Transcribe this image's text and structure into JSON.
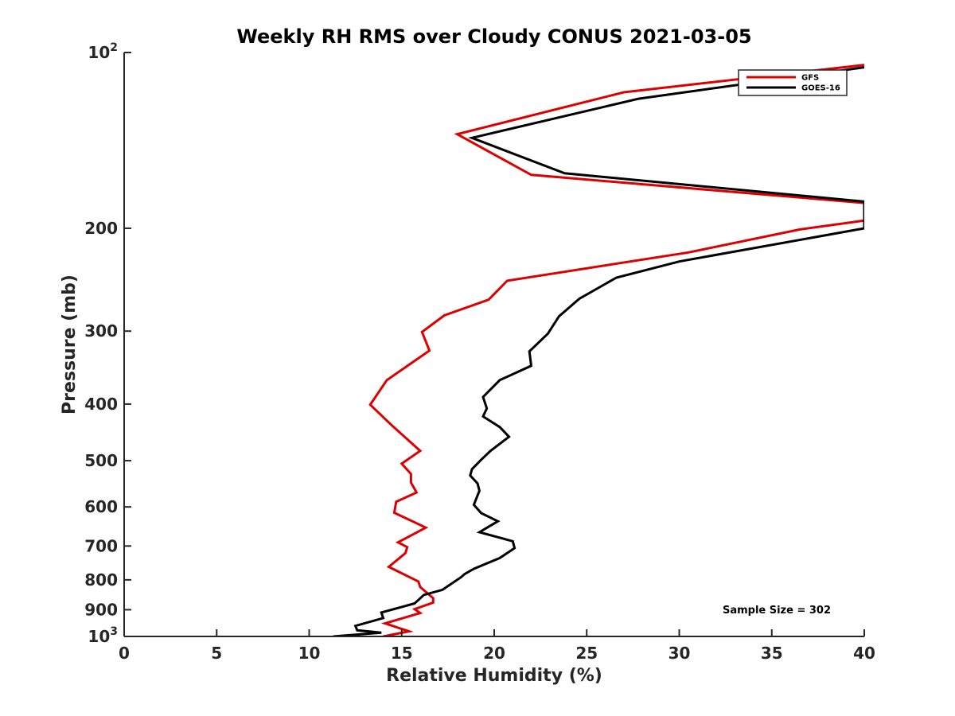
{
  "chart_data": {
    "type": "line",
    "title": "Weekly RH RMS over Cloudy CONUS 2021-03-05",
    "xlabel": "Relative Humidity (%)",
    "ylabel": "Pressure (mb)",
    "xlim": [
      0,
      40
    ],
    "ylim": [
      100,
      1000
    ],
    "y_scale": "log",
    "y_reversed": true,
    "grid": false,
    "legend_position": "top-right",
    "x_ticks": [
      0,
      5,
      10,
      15,
      20,
      25,
      30,
      35,
      40
    ],
    "y_ticks": [
      {
        "value": 100,
        "base": "10",
        "exp": "2"
      },
      {
        "value": 200,
        "label": "200"
      },
      {
        "value": 300,
        "label": "300"
      },
      {
        "value": 400,
        "label": "400"
      },
      {
        "value": 500,
        "label": "500"
      },
      {
        "value": 600,
        "label": "600"
      },
      {
        "value": 700,
        "label": "700"
      },
      {
        "value": 800,
        "label": "800"
      },
      {
        "value": 900,
        "label": "900"
      },
      {
        "value": 1000,
        "base": "10",
        "exp": "3"
      }
    ],
    "annotation": "Sample Size = 302",
    "series": [
      {
        "name": "GFS",
        "color": "#dd0000",
        "points": [
          [
            40.0,
            105
          ],
          [
            27.0,
            117
          ],
          [
            18.0,
            138
          ],
          [
            22.0,
            162
          ],
          [
            40.0,
            181
          ],
          [
            40.0,
            194
          ],
          [
            36.5,
            201
          ],
          [
            30.5,
            220
          ],
          [
            20.7,
            246
          ],
          [
            19.7,
            265
          ],
          [
            17.3,
            282
          ],
          [
            16.1,
            301
          ],
          [
            16.5,
            324
          ],
          [
            14.2,
            364
          ],
          [
            13.3,
            401
          ],
          [
            14.5,
            436
          ],
          [
            16.0,
            481
          ],
          [
            15.0,
            506
          ],
          [
            15.5,
            527
          ],
          [
            15.5,
            545
          ],
          [
            15.8,
            567
          ],
          [
            14.7,
            588
          ],
          [
            14.6,
            614
          ],
          [
            16.3,
            651
          ],
          [
            14.8,
            690
          ],
          [
            15.3,
            703
          ],
          [
            15.2,
            720
          ],
          [
            14.3,
            760
          ],
          [
            15.9,
            805
          ],
          [
            16.0,
            823
          ],
          [
            16.7,
            860
          ],
          [
            16.7,
            875
          ],
          [
            15.7,
            898
          ],
          [
            16.0,
            912
          ],
          [
            14.1,
            950
          ],
          [
            15.4,
            980
          ],
          [
            14.0,
            1000
          ]
        ]
      },
      {
        "name": "GOES-16",
        "color": "#000000",
        "points": [
          [
            40.0,
            106
          ],
          [
            27.8,
            120
          ],
          [
            18.8,
            140
          ],
          [
            23.8,
            161
          ],
          [
            40.0,
            180
          ],
          [
            40.0,
            200
          ],
          [
            30.0,
            228
          ],
          [
            26.6,
            243
          ],
          [
            24.6,
            264
          ],
          [
            23.5,
            283
          ],
          [
            22.9,
            303
          ],
          [
            21.9,
            325
          ],
          [
            22.0,
            344
          ],
          [
            20.3,
            364
          ],
          [
            19.4,
            389
          ],
          [
            19.6,
            407
          ],
          [
            19.4,
            420
          ],
          [
            20.3,
            438
          ],
          [
            20.8,
            455
          ],
          [
            19.8,
            481
          ],
          [
            19.3,
            498
          ],
          [
            18.8,
            517
          ],
          [
            18.7,
            530
          ],
          [
            19.1,
            547
          ],
          [
            19.2,
            563
          ],
          [
            18.9,
            595
          ],
          [
            19.3,
            615
          ],
          [
            20.2,
            635
          ],
          [
            19.2,
            663
          ],
          [
            21.0,
            687
          ],
          [
            21.1,
            706
          ],
          [
            20.3,
            734
          ],
          [
            18.9,
            766
          ],
          [
            18.4,
            782
          ],
          [
            18.2,
            792
          ],
          [
            17.2,
            832
          ],
          [
            16.2,
            849
          ],
          [
            15.7,
            878
          ],
          [
            13.9,
            910
          ],
          [
            14.0,
            930
          ],
          [
            12.5,
            959
          ],
          [
            12.6,
            976
          ],
          [
            13.9,
            985
          ],
          [
            11.3,
            1000
          ]
        ]
      }
    ]
  }
}
